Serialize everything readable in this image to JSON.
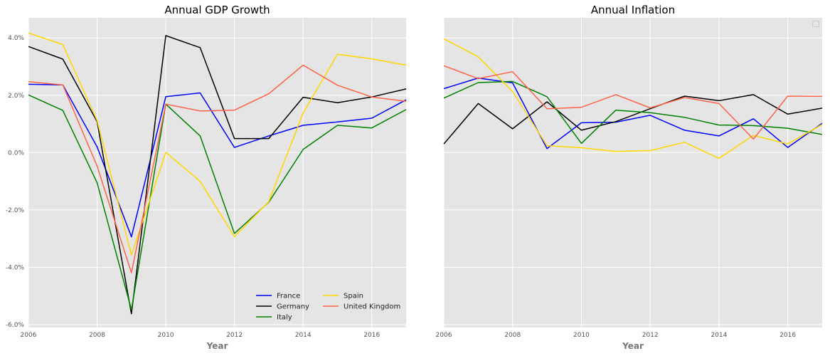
{
  "chart_data": [
    {
      "type": "line",
      "title": "Annual GDP Growth",
      "xlabel": "Year",
      "ylabel": "",
      "xlim": [
        2006,
        2017
      ],
      "ylim": [
        -6.1,
        4.7
      ],
      "xticks": [
        2006,
        2008,
        2010,
        2012,
        2014,
        2016
      ],
      "xtick_labels": [
        "2006",
        "2008",
        "2010",
        "2012",
        "2014",
        "2016"
      ],
      "yticks": [
        -6,
        -4,
        -2,
        0,
        2,
        4
      ],
      "ytick_labels": [
        "-6.0%",
        "-4.0%",
        "-2.0%",
        "0.0%",
        "2.0%",
        "4.0%"
      ],
      "grid": true,
      "legend": "lower-right",
      "x": [
        2006,
        2007,
        2008,
        2009,
        2010,
        2011,
        2012,
        2013,
        2014,
        2015,
        2016,
        2017
      ],
      "series": [
        {
          "name": "France",
          "color": "#0000ff",
          "values": [
            2.38,
            2.36,
            0.2,
            -2.94,
            1.95,
            2.08,
            0.18,
            0.58,
            0.95,
            1.07,
            1.2,
            1.84
          ]
        },
        {
          "name": "Germany",
          "color": "#000000",
          "values": [
            3.7,
            3.26,
            1.08,
            -5.62,
            4.08,
            3.66,
            0.49,
            0.49,
            1.93,
            1.74,
            1.94,
            2.22
          ]
        },
        {
          "name": "Italy",
          "color": "#008000",
          "values": [
            2.01,
            1.47,
            -1.05,
            -5.48,
            1.69,
            0.58,
            -2.82,
            -1.73,
            0.11,
            0.95,
            0.86,
            1.5
          ]
        },
        {
          "name": "Spain",
          "color": "#ffd700",
          "values": [
            4.17,
            3.77,
            1.12,
            -3.57,
            0.01,
            -1.0,
            -2.93,
            -1.71,
            1.38,
            3.43,
            3.27,
            3.05
          ]
        },
        {
          "name": "United Kingdom",
          "color": "#ff6347",
          "values": [
            2.47,
            2.36,
            -0.47,
            -4.19,
            1.69,
            1.45,
            1.48,
            2.05,
            3.05,
            2.35,
            1.94,
            1.79
          ]
        }
      ]
    },
    {
      "type": "line",
      "title": "Annual Inflation",
      "xlabel": "Year",
      "ylabel": "",
      "xlim": [
        2006,
        2017
      ],
      "ylim": [
        -6.1,
        4.7
      ],
      "xticks": [
        2006,
        2008,
        2010,
        2012,
        2014,
        2016
      ],
      "xtick_labels": [
        "2006",
        "2008",
        "2010",
        "2012",
        "2014",
        "2016"
      ],
      "yticks": [
        -6,
        -4,
        -2,
        0,
        2,
        4
      ],
      "grid": true,
      "legend": "top-right",
      "x": [
        2006,
        2007,
        2008,
        2009,
        2010,
        2011,
        2012,
        2013,
        2014,
        2015,
        2016,
        2017
      ],
      "series": [
        {
          "color": "#0000ff",
          "values": [
            2.23,
            2.6,
            2.43,
            0.14,
            1.04,
            1.06,
            1.3,
            0.78,
            0.58,
            1.18,
            0.18,
            1.02
          ]
        },
        {
          "color": "#000000",
          "values": [
            0.3,
            1.71,
            0.83,
            1.77,
            0.78,
            1.08,
            1.53,
            1.97,
            1.81,
            2.02,
            1.34,
            1.55
          ]
        },
        {
          "color": "#008000",
          "values": [
            1.9,
            2.44,
            2.48,
            1.95,
            0.32,
            1.48,
            1.39,
            1.23,
            0.96,
            0.94,
            0.85,
            0.63
          ]
        },
        {
          "color": "#ffd700",
          "values": [
            3.97,
            3.34,
            2.13,
            0.24,
            0.17,
            0.04,
            0.07,
            0.36,
            -0.2,
            0.6,
            0.3,
            0.98
          ]
        },
        {
          "color": "#ff6347",
          "values": [
            3.03,
            2.58,
            2.82,
            1.53,
            1.58,
            2.02,
            1.56,
            1.92,
            1.71,
            0.47,
            1.97,
            1.96
          ]
        }
      ]
    }
  ]
}
